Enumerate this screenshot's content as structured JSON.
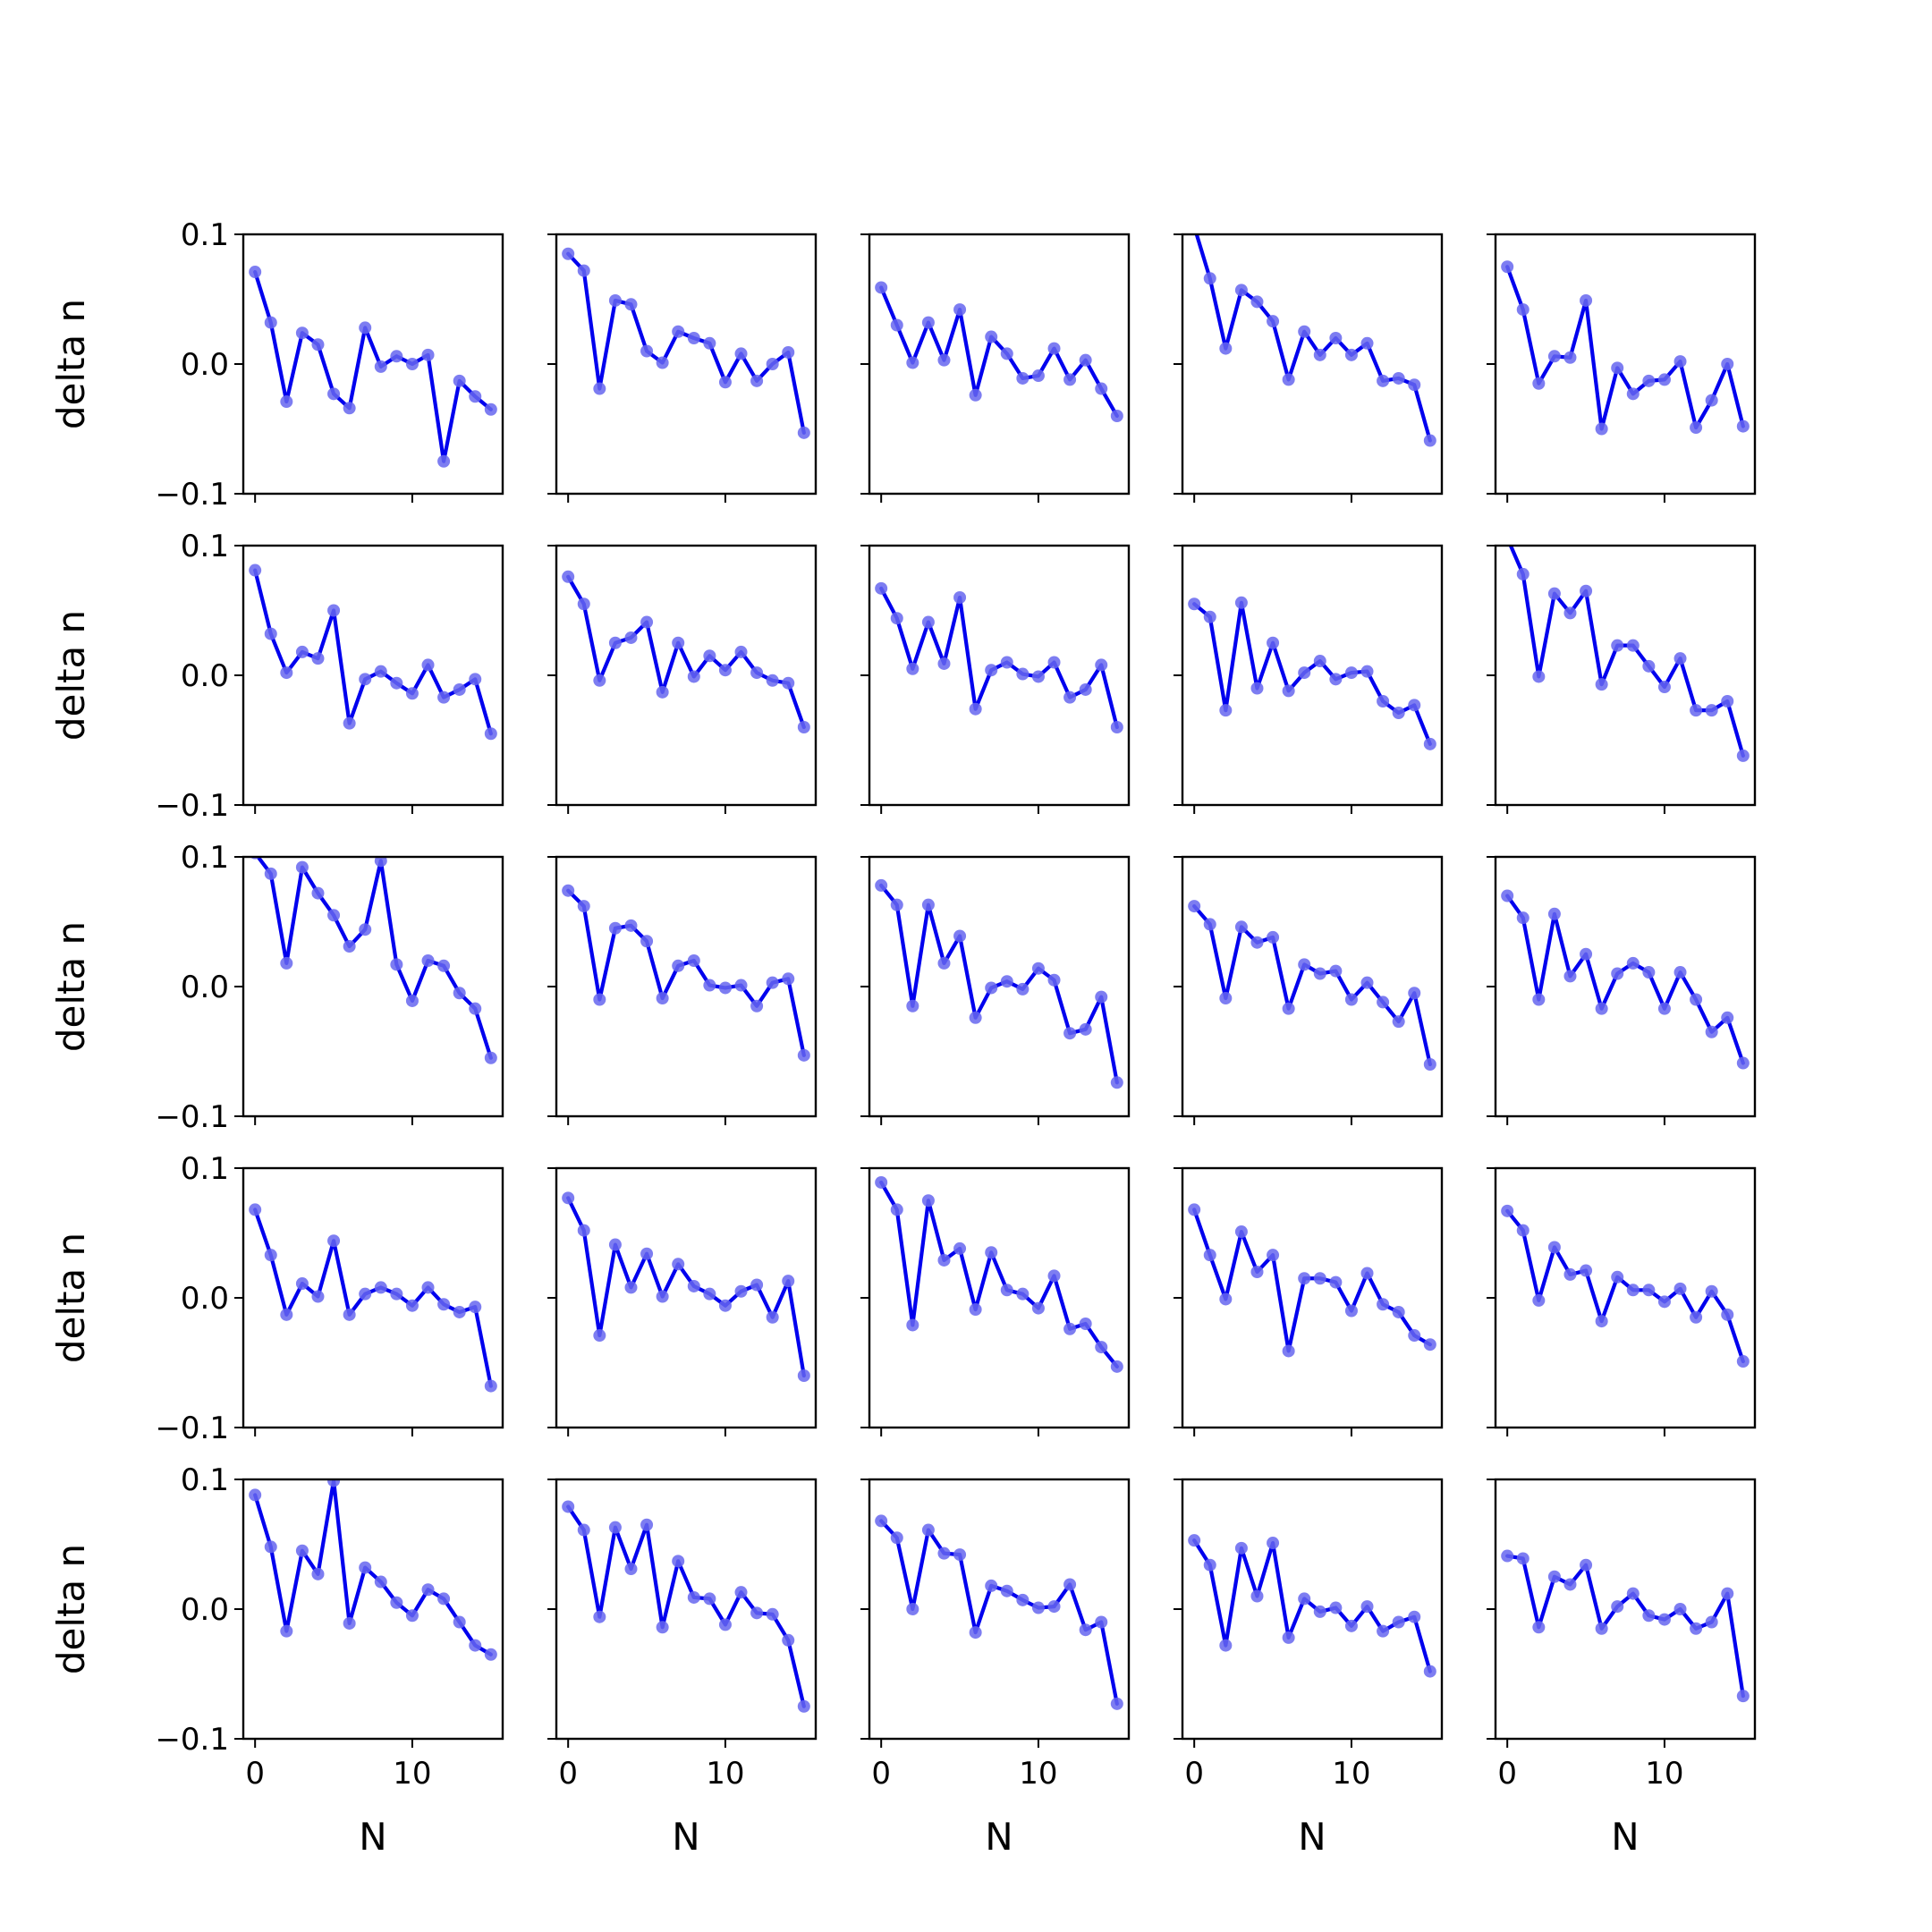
{
  "chart_data": {
    "type": "line",
    "layout": {
      "rows": 5,
      "cols": 5
    },
    "xlabel": "N",
    "ylabel": "delta n",
    "xlim": [
      -0.75,
      15.75
    ],
    "ylim": [
      -0.1,
      0.1
    ],
    "xticks": [
      0,
      10
    ],
    "xtick_labels": [
      "0",
      "10"
    ],
    "yticks": [
      -0.1,
      0.0,
      0.1
    ],
    "ytick_labels": [
      "−0.1",
      "0.0",
      "0.1"
    ],
    "line_color": "#0000ee",
    "marker_color": "#6666ee",
    "x": [
      0,
      1,
      2,
      3,
      4,
      5,
      6,
      7,
      8,
      9,
      10,
      11,
      12,
      13,
      14,
      15
    ],
    "panels": [
      {
        "values": [
          0.071,
          0.032,
          -0.029,
          0.024,
          0.015,
          -0.023,
          -0.034,
          0.028,
          -0.002,
          0.006,
          0.0,
          0.007,
          -0.075,
          -0.013,
          -0.025,
          -0.035
        ]
      },
      {
        "values": [
          0.085,
          0.072,
          -0.019,
          0.049,
          0.046,
          0.01,
          0.001,
          0.025,
          0.02,
          0.016,
          -0.014,
          0.008,
          -0.013,
          0.0,
          0.009,
          -0.053
        ]
      },
      {
        "values": [
          0.059,
          0.03,
          0.001,
          0.032,
          0.003,
          0.042,
          -0.024,
          0.021,
          0.008,
          -0.011,
          -0.009,
          0.012,
          -0.012,
          0.003,
          -0.019,
          -0.04
        ]
      },
      {
        "values": [
          0.106,
          0.066,
          0.012,
          0.057,
          0.048,
          0.033,
          -0.012,
          0.025,
          0.007,
          0.02,
          0.007,
          0.016,
          -0.013,
          -0.011,
          -0.016,
          -0.059
        ]
      },
      {
        "values": [
          0.075,
          0.042,
          -0.015,
          0.006,
          0.005,
          0.049,
          -0.05,
          -0.003,
          -0.023,
          -0.013,
          -0.012,
          0.002,
          -0.049,
          -0.028,
          0.0,
          -0.048
        ]
      },
      {
        "values": [
          0.081,
          0.032,
          0.002,
          0.018,
          0.013,
          0.05,
          -0.037,
          -0.003,
          0.003,
          -0.006,
          -0.014,
          0.008,
          -0.017,
          -0.011,
          -0.003,
          -0.045
        ]
      },
      {
        "values": [
          0.076,
          0.055,
          -0.004,
          0.025,
          0.029,
          0.041,
          -0.013,
          0.025,
          -0.001,
          0.015,
          0.004,
          0.018,
          0.002,
          -0.004,
          -0.006,
          -0.04
        ]
      },
      {
        "values": [
          0.067,
          0.044,
          0.005,
          0.041,
          0.009,
          0.06,
          -0.026,
          0.004,
          0.01,
          0.001,
          -0.001,
          0.01,
          -0.017,
          -0.011,
          0.008,
          -0.04
        ]
      },
      {
        "values": [
          0.055,
          0.045,
          -0.027,
          0.056,
          -0.01,
          0.025,
          -0.012,
          0.002,
          0.011,
          -0.003,
          0.002,
          0.003,
          -0.02,
          -0.029,
          -0.023,
          -0.053
        ]
      },
      {
        "values": [
          0.106,
          0.078,
          -0.001,
          0.063,
          0.048,
          0.065,
          -0.007,
          0.023,
          0.023,
          0.007,
          -0.009,
          0.013,
          -0.027,
          -0.027,
          -0.02,
          -0.062
        ]
      },
      {
        "values": [
          0.103,
          0.087,
          0.018,
          0.092,
          0.072,
          0.055,
          0.031,
          0.044,
          0.097,
          0.017,
          -0.011,
          0.02,
          0.016,
          -0.005,
          -0.017,
          -0.055
        ]
      },
      {
        "values": [
          0.074,
          0.062,
          -0.01,
          0.045,
          0.047,
          0.035,
          -0.009,
          0.016,
          0.02,
          0.001,
          -0.001,
          0.001,
          -0.015,
          0.003,
          0.006,
          -0.053
        ]
      },
      {
        "values": [
          0.078,
          0.063,
          -0.015,
          0.063,
          0.018,
          0.039,
          -0.024,
          -0.001,
          0.004,
          -0.002,
          0.014,
          0.005,
          -0.036,
          -0.033,
          -0.008,
          -0.074
        ]
      },
      {
        "values": [
          0.062,
          0.048,
          -0.009,
          0.046,
          0.034,
          0.038,
          -0.017,
          0.017,
          0.01,
          0.012,
          -0.01,
          0.003,
          -0.012,
          -0.027,
          -0.005,
          -0.06
        ]
      },
      {
        "values": [
          0.07,
          0.053,
          -0.01,
          0.056,
          0.008,
          0.025,
          -0.017,
          0.01,
          0.018,
          0.011,
          -0.017,
          0.011,
          -0.01,
          -0.035,
          -0.024,
          -0.059
        ]
      },
      {
        "values": [
          0.068,
          0.033,
          -0.013,
          0.011,
          0.001,
          0.044,
          -0.013,
          0.003,
          0.008,
          0.003,
          -0.006,
          0.008,
          -0.005,
          -0.011,
          -0.007,
          -0.068
        ]
      },
      {
        "values": [
          0.077,
          0.052,
          -0.029,
          0.041,
          0.008,
          0.034,
          0.001,
          0.026,
          0.009,
          0.003,
          -0.006,
          0.005,
          0.01,
          -0.015,
          0.013,
          -0.06
        ]
      },
      {
        "values": [
          0.089,
          0.068,
          -0.021,
          0.075,
          0.029,
          0.038,
          -0.009,
          0.035,
          0.006,
          0.003,
          -0.008,
          0.017,
          -0.024,
          -0.02,
          -0.038,
          -0.053
        ]
      },
      {
        "values": [
          0.068,
          0.033,
          -0.001,
          0.051,
          0.02,
          0.033,
          -0.041,
          0.015,
          0.015,
          0.012,
          -0.01,
          0.019,
          -0.005,
          -0.011,
          -0.029,
          -0.036
        ]
      },
      {
        "values": [
          0.067,
          0.052,
          -0.002,
          0.039,
          0.018,
          0.021,
          -0.018,
          0.016,
          0.006,
          0.006,
          -0.003,
          0.007,
          -0.015,
          0.005,
          -0.013,
          -0.049
        ]
      },
      {
        "values": [
          0.088,
          0.048,
          -0.017,
          0.045,
          0.027,
          0.099,
          -0.011,
          0.032,
          0.021,
          0.005,
          -0.005,
          0.015,
          0.008,
          -0.01,
          -0.028,
          -0.035
        ]
      },
      {
        "values": [
          0.079,
          0.061,
          -0.006,
          0.063,
          0.031,
          0.065,
          -0.014,
          0.037,
          0.009,
          0.008,
          -0.012,
          0.013,
          -0.003,
          -0.004,
          -0.024,
          -0.075
        ]
      },
      {
        "values": [
          0.068,
          0.055,
          0.0,
          0.061,
          0.043,
          0.042,
          -0.018,
          0.018,
          0.014,
          0.007,
          0.001,
          0.002,
          0.019,
          -0.016,
          -0.01,
          -0.073
        ]
      },
      {
        "values": [
          0.053,
          0.034,
          -0.028,
          0.047,
          0.01,
          0.051,
          -0.022,
          0.008,
          -0.002,
          0.001,
          -0.013,
          0.002,
          -0.017,
          -0.01,
          -0.006,
          -0.048
        ]
      },
      {
        "values": [
          0.041,
          0.039,
          -0.014,
          0.025,
          0.019,
          0.034,
          -0.015,
          0.002,
          0.012,
          -0.005,
          -0.008,
          0.0,
          -0.015,
          -0.01,
          0.012,
          -0.067
        ]
      }
    ]
  }
}
